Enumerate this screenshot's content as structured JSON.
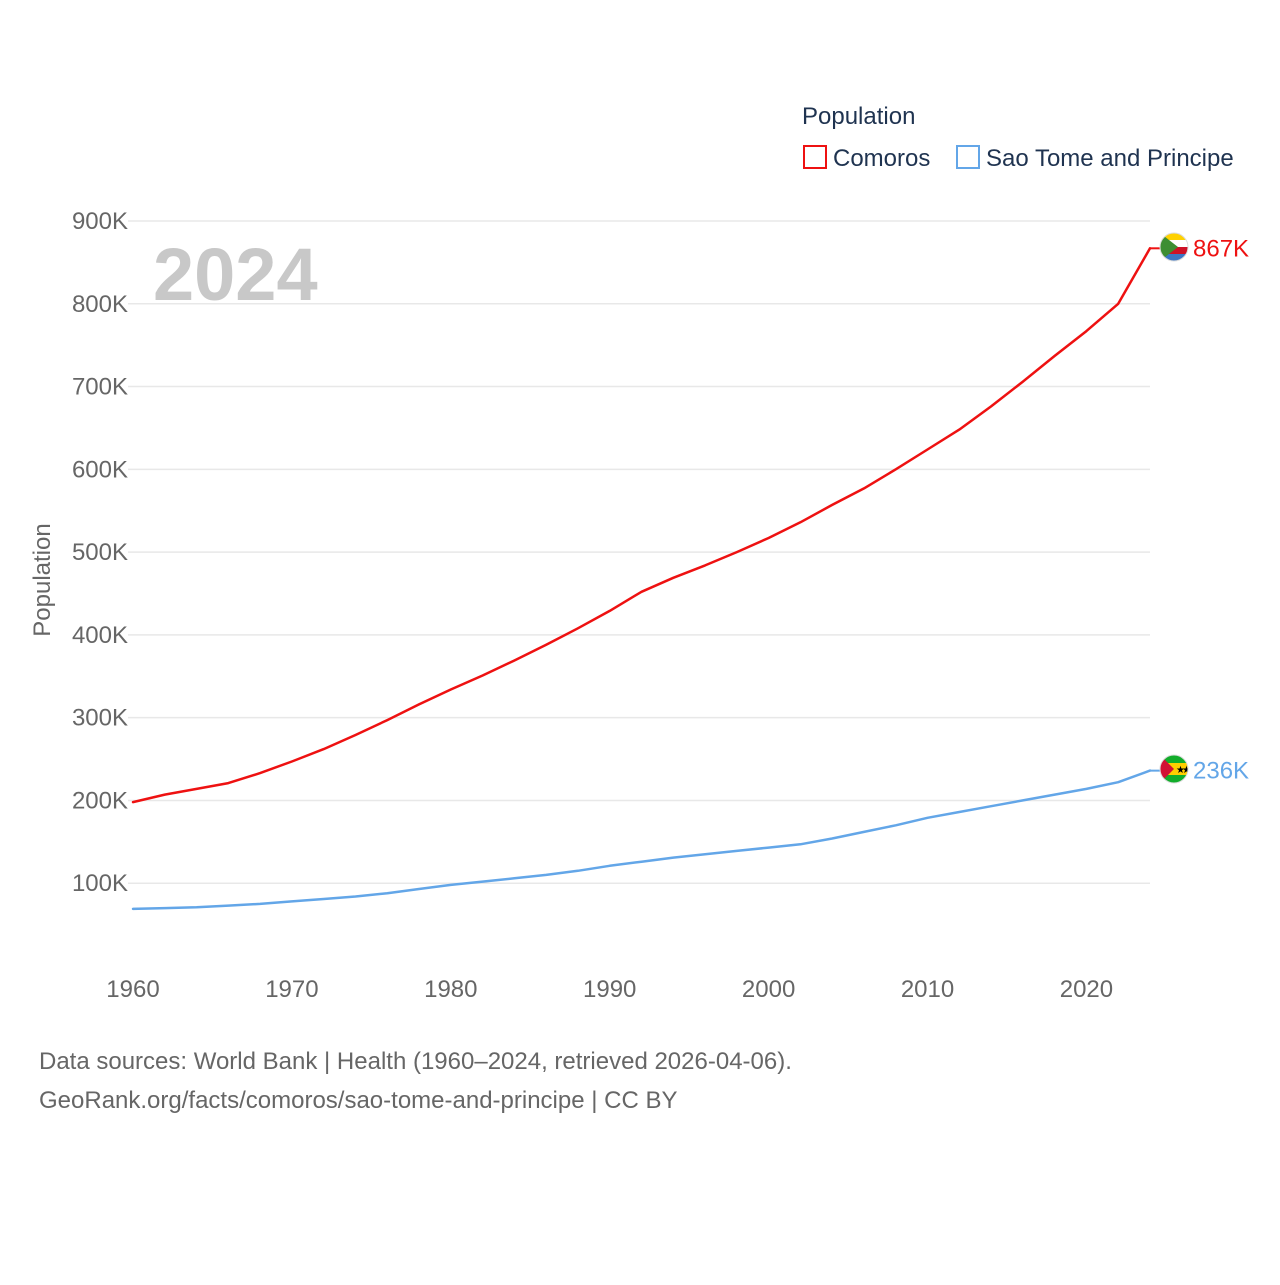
{
  "colors": {
    "comoros": "#ee1111",
    "stp": "#63a6e8",
    "grid": "#e8e8e8",
    "tick_text": "#666666",
    "watermark": "#c8c8c8",
    "legend_text": "#1f3350"
  },
  "chart_data": {
    "type": "line",
    "title": "Population",
    "year_label": "2024",
    "xlabel": "",
    "ylabel": "Population",
    "xlim": [
      1960,
      2024
    ],
    "ylim": [
      0,
      900000
    ],
    "x_ticks": [
      1960,
      1970,
      1980,
      1990,
      2000,
      2010,
      2020
    ],
    "x_tick_labels": [
      "1960",
      "1970",
      "1980",
      "1990",
      "2000",
      "2010",
      "2020"
    ],
    "y_ticks": [
      100000,
      200000,
      300000,
      400000,
      500000,
      600000,
      700000,
      800000,
      900000
    ],
    "y_tick_labels": [
      "100K",
      "200K",
      "300K",
      "400K",
      "500K",
      "600K",
      "700K",
      "800K",
      "900K"
    ],
    "legend_position": "top-right",
    "series": [
      {
        "name": "Comoros",
        "end_label": "867K",
        "x": [
          1960,
          1962,
          1964,
          1966,
          1968,
          1970,
          1972,
          1974,
          1976,
          1978,
          1980,
          1982,
          1984,
          1986,
          1988,
          1990,
          1992,
          1994,
          1996,
          1998,
          2000,
          2002,
          2004,
          2006,
          2008,
          2010,
          2012,
          2014,
          2016,
          2018,
          2020,
          2022,
          2024
        ],
        "values": [
          198000,
          207000,
          214000,
          221000,
          233000,
          247000,
          262000,
          279000,
          297000,
          316000,
          334000,
          351000,
          369000,
          388000,
          408000,
          429000,
          452000,
          469000,
          484000,
          500000,
          517000,
          536000,
          557000,
          577000,
          600000,
          624000,
          648000,
          676000,
          706000,
          737000,
          767000,
          800000,
          867000
        ]
      },
      {
        "name": "Sao Tome and Principe",
        "end_label": "236K",
        "x": [
          1960,
          1962,
          1964,
          1966,
          1968,
          1970,
          1972,
          1974,
          1976,
          1978,
          1980,
          1982,
          1984,
          1986,
          1988,
          1990,
          1992,
          1994,
          1996,
          1998,
          2000,
          2002,
          2004,
          2006,
          2008,
          2010,
          2012,
          2014,
          2016,
          2018,
          2020,
          2022,
          2024
        ],
        "values": [
          69000,
          70000,
          71000,
          73000,
          75000,
          78000,
          81000,
          84000,
          88000,
          93000,
          98000,
          102000,
          106000,
          110000,
          115000,
          121000,
          126000,
          131000,
          135000,
          139000,
          143000,
          147000,
          154000,
          162000,
          170000,
          179000,
          186000,
          193000,
          200000,
          207000,
          214000,
          222000,
          236000
        ]
      }
    ]
  },
  "footer": {
    "source_line": "Data sources: World Bank | Health (1960–2024, retrieved 2026-04-06).",
    "credit_line": "GeoRank.org/facts/comoros/sao-tome-and-principe | CC BY"
  }
}
